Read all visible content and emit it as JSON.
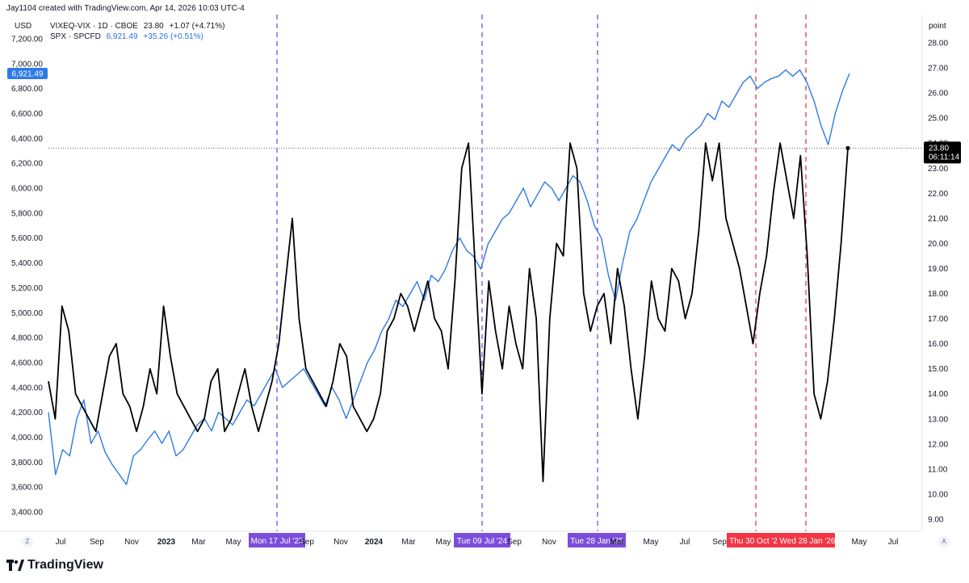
{
  "header": {
    "created_line": "Jay1104 created with TradingView.com, Apr 14, 2026 10:03 UTC-4"
  },
  "legend": {
    "vix_name": "VIXEQ-VIX · 1D · CBOE",
    "vix_value": "23.80",
    "vix_change": "+1.07 (+4.71%)",
    "spx_name": "SPX · SPCFD",
    "spx_value": "6,921.49",
    "spx_change": "+35.26 (+0.51%)"
  },
  "branding": {
    "name": "TradingView"
  },
  "buttons": {
    "zoom": "Z",
    "auto": "A"
  },
  "colors": {
    "spx": "#2f7ae5",
    "vix": "#000000",
    "purple_marker": "#7c4ddb",
    "red_marker": "#f23645",
    "badge_blue": "#2f7ae5",
    "badge_black": "#000000"
  },
  "chart_data": {
    "type": "line",
    "left_axis": {
      "unit": "USD",
      "ticks": [
        "7,200.00",
        "7,000.00",
        "6,800.00",
        "6,600.00",
        "6,400.00",
        "6,200.00",
        "6,000.00",
        "5,800.00",
        "5,600.00",
        "5,400.00",
        "5,200.00",
        "5,000.00",
        "4,800.00",
        "4,600.00",
        "4,400.00",
        "4,200.00",
        "4,000.00",
        "3,800.00",
        "3,600.00",
        "3,400.00"
      ],
      "range": [
        3300,
        7300
      ]
    },
    "right_axis": {
      "unit": "point",
      "ticks": [
        "28.00",
        "27.00",
        "26.00",
        "25.00",
        "24.00",
        "23.00",
        "22.00",
        "21.00",
        "20.00",
        "19.00",
        "18.00",
        "17.00",
        "16.00",
        "15.00",
        "14.00",
        "13.00",
        "12.00",
        "11.00",
        "10.00",
        "9.00"
      ],
      "range": [
        8.5,
        28.5
      ]
    },
    "time_axis": {
      "labels": [
        "Jul",
        "Sep",
        "Nov",
        "2023",
        "Mar",
        "May",
        "Sep",
        "Nov",
        "2024",
        "Mar",
        "May",
        "Sep",
        "Nov",
        "Mar",
        "May",
        "Jul",
        "Sep",
        "May",
        "Jul"
      ],
      "bold_labels": [
        "2023",
        "2024"
      ]
    },
    "vertical_markers": [
      {
        "label": "Mon 17 Jul '23",
        "color": "purple"
      },
      {
        "label": "Tue 09 Jul '24",
        "color": "purple"
      },
      {
        "label": "Tue 28 Jan '25",
        "color": "purple"
      },
      {
        "label": "Thu 30 Oct '2",
        "color": "red"
      },
      {
        "label": "Wed 28 Jan '26",
        "color": "red"
      }
    ],
    "price_badges": {
      "spx": "6,921.49",
      "vix": "23.80",
      "vix_countdown": "06:11:14"
    },
    "series": [
      {
        "name": "SPX · SPCFD",
        "axis": "left",
        "values": [
          4200,
          3700,
          3900,
          3850,
          4150,
          4300,
          3950,
          4050,
          3880,
          3780,
          3700,
          3620,
          3850,
          3900,
          3980,
          4050,
          3950,
          4050,
          3850,
          3900,
          4000,
          4100,
          4150,
          4050,
          4200,
          4150,
          4100,
          4200,
          4300,
          4250,
          4350,
          4450,
          4550,
          4400,
          4450,
          4500,
          4550,
          4450,
          4350,
          4250,
          4400,
          4300,
          4150,
          4300,
          4450,
          4600,
          4700,
          4850,
          4950,
          5100,
          5050,
          5150,
          5250,
          5100,
          5300,
          5250,
          5350,
          5500,
          5600,
          5500,
          5450,
          5350,
          5550,
          5650,
          5750,
          5800,
          5900,
          6000,
          5850,
          5950,
          6050,
          6000,
          5900,
          6000,
          6100,
          6050,
          5900,
          5700,
          5600,
          5300,
          5100,
          5400,
          5650,
          5750,
          5900,
          6050,
          6150,
          6250,
          6350,
          6300,
          6400,
          6450,
          6500,
          6600,
          6550,
          6700,
          6650,
          6750,
          6850,
          6900,
          6800,
          6850,
          6880,
          6900,
          6950,
          6900,
          6950,
          6850,
          6700,
          6500,
          6350,
          6600,
          6780,
          6921
        ]
      },
      {
        "name": "VIXEQ-VIX · 1D · CBOE",
        "axis": "right",
        "values": [
          14.5,
          13,
          17.5,
          16.5,
          14,
          13.5,
          13,
          12.5,
          14,
          15.5,
          16,
          14,
          13.5,
          12.5,
          13.5,
          15,
          14,
          17.5,
          15.5,
          14,
          13.5,
          13,
          12.5,
          13,
          14.5,
          15,
          12.5,
          13,
          14,
          15,
          13.5,
          12.5,
          13.5,
          14.5,
          16,
          18.5,
          21,
          17,
          15,
          14.5,
          14,
          13.5,
          14.5,
          16,
          15.5,
          13.5,
          13,
          12.5,
          13,
          14,
          16.5,
          17,
          18,
          17.5,
          16.5,
          17.5,
          18.5,
          17,
          16.5,
          15,
          18.5,
          23,
          24,
          19,
          14,
          18.5,
          16.5,
          15,
          17.5,
          16,
          15,
          19,
          17,
          10.5,
          17,
          20,
          19.5,
          24,
          23,
          18,
          16.5,
          17.5,
          18,
          16,
          19,
          17.5,
          15,
          13,
          15.5,
          18.5,
          17,
          16.5,
          19,
          18.5,
          17,
          18,
          20.5,
          24,
          22.5,
          24,
          21,
          20,
          19,
          17.5,
          16,
          18,
          19.5,
          22,
          24,
          22.5,
          21,
          23.5,
          19.5,
          14,
          13,
          14.5,
          17,
          20,
          23.8
        ]
      }
    ]
  }
}
